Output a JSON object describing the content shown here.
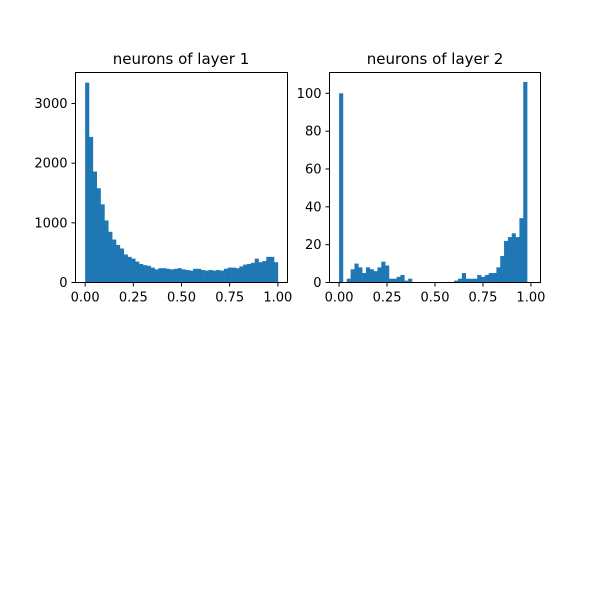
{
  "figure": {
    "background": "#ffffff"
  },
  "chart_data": [
    {
      "type": "bar",
      "title": "neurons of layer 1",
      "xlabel": "",
      "ylabel": "",
      "bar_color": "#1f77b4",
      "grid": false,
      "xlim": [
        -0.05,
        1.05
      ],
      "ylim": [
        0,
        3520
      ],
      "bin_width": 0.02,
      "x_ticks": [
        0.0,
        0.25,
        0.5,
        0.75,
        1.0
      ],
      "x_tick_labels": [
        "0.00",
        "0.25",
        "0.50",
        "0.75",
        "1.00"
      ],
      "y_ticks": [
        0,
        1000,
        2000,
        3000
      ],
      "y_tick_labels": [
        "0",
        "1000",
        "2000",
        "3000"
      ],
      "bin_starts": [
        0.0,
        0.02,
        0.04,
        0.06,
        0.08,
        0.1,
        0.12,
        0.14,
        0.16,
        0.18,
        0.2,
        0.22,
        0.24,
        0.26,
        0.28,
        0.3,
        0.32,
        0.34,
        0.36,
        0.38,
        0.4,
        0.42,
        0.44,
        0.46,
        0.48,
        0.5,
        0.52,
        0.54,
        0.56,
        0.58,
        0.6,
        0.62,
        0.64,
        0.66,
        0.68,
        0.7,
        0.72,
        0.74,
        0.76,
        0.78,
        0.8,
        0.82,
        0.84,
        0.86,
        0.88,
        0.9,
        0.92,
        0.94,
        0.96,
        0.98
      ],
      "values": [
        3350,
        2440,
        1860,
        1580,
        1310,
        1040,
        850,
        720,
        630,
        570,
        470,
        430,
        400,
        350,
        310,
        290,
        280,
        250,
        220,
        240,
        240,
        230,
        220,
        230,
        240,
        220,
        210,
        200,
        230,
        230,
        210,
        200,
        210,
        200,
        210,
        200,
        230,
        250,
        250,
        240,
        270,
        300,
        310,
        330,
        400,
        340,
        360,
        430,
        430,
        340
      ]
    },
    {
      "type": "bar",
      "title": "neurons of layer 2",
      "xlabel": "",
      "ylabel": "",
      "bar_color": "#1f77b4",
      "grid": false,
      "xlim": [
        -0.05,
        1.05
      ],
      "ylim": [
        0,
        111
      ],
      "bin_width": 0.02,
      "x_ticks": [
        0.0,
        0.25,
        0.5,
        0.75,
        1.0
      ],
      "x_tick_labels": [
        "0.00",
        "0.25",
        "0.50",
        "0.75",
        "1.00"
      ],
      "y_ticks": [
        0,
        20,
        40,
        60,
        80,
        100
      ],
      "y_tick_labels": [
        "0",
        "20",
        "40",
        "60",
        "80",
        "100"
      ],
      "bin_starts": [
        0.0,
        0.02,
        0.04,
        0.06,
        0.08,
        0.1,
        0.12,
        0.14,
        0.16,
        0.18,
        0.2,
        0.22,
        0.24,
        0.26,
        0.28,
        0.3,
        0.32,
        0.34,
        0.36,
        0.38,
        0.4,
        0.42,
        0.44,
        0.46,
        0.48,
        0.5,
        0.52,
        0.54,
        0.56,
        0.58,
        0.6,
        0.62,
        0.64,
        0.66,
        0.68,
        0.7,
        0.72,
        0.74,
        0.76,
        0.78,
        0.8,
        0.82,
        0.84,
        0.86,
        0.88,
        0.9,
        0.92,
        0.94,
        0.96,
        0.98
      ],
      "values": [
        100,
        0,
        2,
        7,
        10,
        8,
        5,
        8,
        7,
        6,
        8,
        11,
        9,
        2,
        2,
        3,
        4,
        1,
        2,
        0,
        0,
        0,
        0,
        0,
        0,
        0,
        0,
        0,
        0,
        0,
        1,
        2,
        5,
        2,
        2,
        2,
        4,
        3,
        4,
        5,
        5,
        8,
        14,
        22,
        24,
        26,
        24,
        34,
        106,
        0
      ]
    }
  ]
}
